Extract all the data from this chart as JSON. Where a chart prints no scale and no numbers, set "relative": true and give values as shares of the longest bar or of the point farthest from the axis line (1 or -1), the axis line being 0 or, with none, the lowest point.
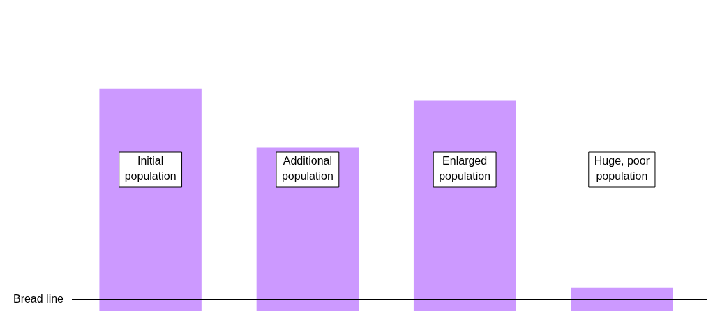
{
  "chart_data": {
    "type": "bar",
    "relative": true,
    "categories": [
      null,
      null,
      null,
      null
    ],
    "annotations": [
      "Initial population",
      "Additional population",
      "Enlarged population",
      "Huge, poor population"
    ],
    "values": [
      1,
      0.735,
      0.945,
      0.104
    ],
    "color": "#cc99ff",
    "ref_lines": [
      {
        "axis": "y",
        "value": 0.05,
        "label": "Bread line",
        "color": "#000000"
      }
    ],
    "tick_labels": false,
    "legend": false
  }
}
